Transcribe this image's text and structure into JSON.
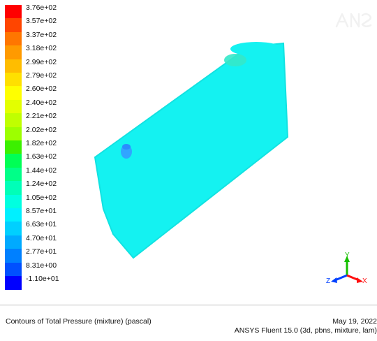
{
  "viewport": {
    "legend": {
      "labels": [
        "3.76e+02",
        "3.57e+02",
        "3.37e+02",
        "3.18e+02",
        "2.99e+02",
        "2.79e+02",
        "2.60e+02",
        "2.40e+02",
        "2.21e+02",
        "2.02e+02",
        "1.82e+02",
        "1.63e+02",
        "1.44e+02",
        "1.24e+02",
        "1.05e+02",
        "8.57e+01",
        "6.63e+01",
        "4.70e+01",
        "2.77e+01",
        "8.31e+00",
        "-1.10e+01"
      ],
      "colors": [
        "#ff0000",
        "#ff4500",
        "#ff7600",
        "#ff9a00",
        "#ffbd00",
        "#ffe000",
        "#ffff00",
        "#e3ff00",
        "#c0ff00",
        "#9dff00",
        "#3cf000",
        "#00ff55",
        "#00ff88",
        "#00ffb8",
        "#00ffe0",
        "#00f0ff",
        "#00d0ff",
        "#00aaff",
        "#0080ff",
        "#0050ff",
        "#0000ff"
      ]
    },
    "geometry": {
      "body_color": "#14f2f1",
      "body_edge_color": "#12e2e1",
      "nozzle_color": "#31a5ff",
      "nozzle_top_color": "#2a8cff",
      "top_spot_color": "#34e8c9"
    },
    "axes": {
      "y_label": "Y",
      "z_label": "Z",
      "x_label": "X",
      "y_color": "#16c000",
      "z_color": "#0040ff",
      "x_color": "#ff1010"
    }
  },
  "footer": {
    "title": "Contours of Total Pressure (mixture)  (pascal)",
    "date": "May 19, 2022",
    "version": "ANSYS Fluent 15.0 (3d, pbns, mixture, lam)"
  }
}
